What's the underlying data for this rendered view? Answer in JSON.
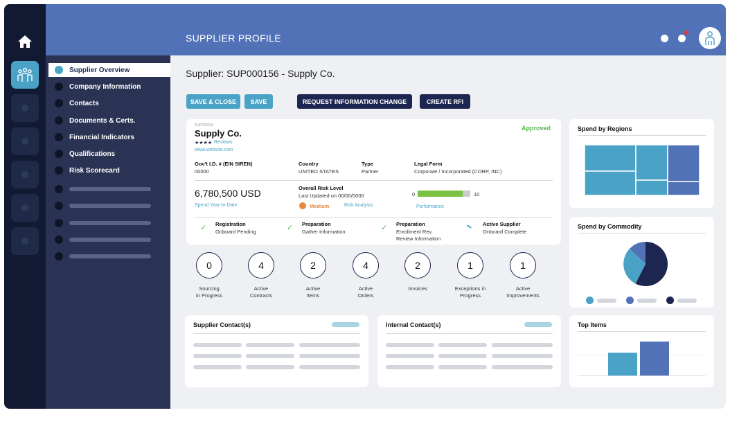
{
  "rail": {
    "items": [
      {
        "icon": "home-icon"
      },
      {
        "icon": "suppliers-icon"
      },
      {
        "icon": "nav-icon"
      },
      {
        "icon": "nav-icon"
      },
      {
        "icon": "nav-icon"
      },
      {
        "icon": "nav-icon"
      },
      {
        "icon": "nav-icon"
      }
    ]
  },
  "header": {
    "title": "SUPPLIER PROFILE"
  },
  "sidebar": {
    "items": [
      {
        "label": "Supplier Overview",
        "active": true
      },
      {
        "label": "Company Information"
      },
      {
        "label": "Contacts"
      },
      {
        "label": "Documents & Certs."
      },
      {
        "label": "Financial Indicators"
      },
      {
        "label": "Qualifications"
      },
      {
        "label": "Risk Scorecard"
      }
    ]
  },
  "page": {
    "title": "Supplier: SUP000156 - Supply Co."
  },
  "toolbar": {
    "save_close": "SAVE & CLOSE",
    "save": "SAVE",
    "request_change": "REQUEST INFORMATION CHANGE",
    "create_rfi": "CREATE RFI"
  },
  "supplier": {
    "id": "SUP000156",
    "name": "Supply Co.",
    "stars": "★★★★",
    "reviews": "Reviews",
    "website": "www.website.com",
    "status": "Approved",
    "fields": [
      {
        "label": "Gov't I.D. # (EIN SIREN)",
        "value": "00000"
      },
      {
        "label": "Country",
        "value": "UNITED STATES"
      },
      {
        "label": "Type",
        "value": "Partner"
      },
      {
        "label": "Legal Form",
        "value": "Corporate / Incorporated (CORP, INC)"
      }
    ],
    "spend_value": "6,780,500 USD",
    "spend_label": "Spend Year-to-Date",
    "risk_title": "Overall Risk Level",
    "risk_updated": "Last Updated on 00/00/0000",
    "risk_level": "Medium",
    "risk_analysis": "Risk Analysis",
    "performance_min": "0",
    "performance_max": "10",
    "performance_fraction": 0.85,
    "performance_label": "Performance",
    "steps": [
      {
        "title": "Registration",
        "sub": "Onboard Pending"
      },
      {
        "title": "Preparation",
        "sub": "Gather Information"
      },
      {
        "title": "Preparation",
        "sub": "Enrollment Rev.",
        "sub2": "Review Information"
      },
      {
        "title": "Active Supplier",
        "sub": "Onboard Complete"
      }
    ]
  },
  "metrics": [
    {
      "value": "0",
      "l1": "Sourcing",
      "l2": "in Progress"
    },
    {
      "value": "4",
      "l1": "Active",
      "l2": "Contracts"
    },
    {
      "value": "2",
      "l1": "Active",
      "l2": "Items"
    },
    {
      "value": "4",
      "l1": "Active",
      "l2": "Orders"
    },
    {
      "value": "2",
      "l1": "Invoices",
      "l2": ""
    },
    {
      "value": "1",
      "l1": "Exceptions in",
      "l2": "Progress"
    },
    {
      "value": "1",
      "l1": "Active",
      "l2": "Improvements"
    }
  ],
  "contacts": {
    "supplier_title": "Supplier Contact(s)",
    "internal_title": "Internal Contact(s)"
  },
  "widgets": {
    "regions_title": "Spend by Regions",
    "commodity_title": "Spend by Commodity",
    "top_items_title": "Top Items"
  },
  "colors": {
    "accent": "#4aa3c6",
    "primary": "#5272b8",
    "navy": "#1c2650",
    "approved": "#5ab552",
    "medium": "#e8873a"
  }
}
